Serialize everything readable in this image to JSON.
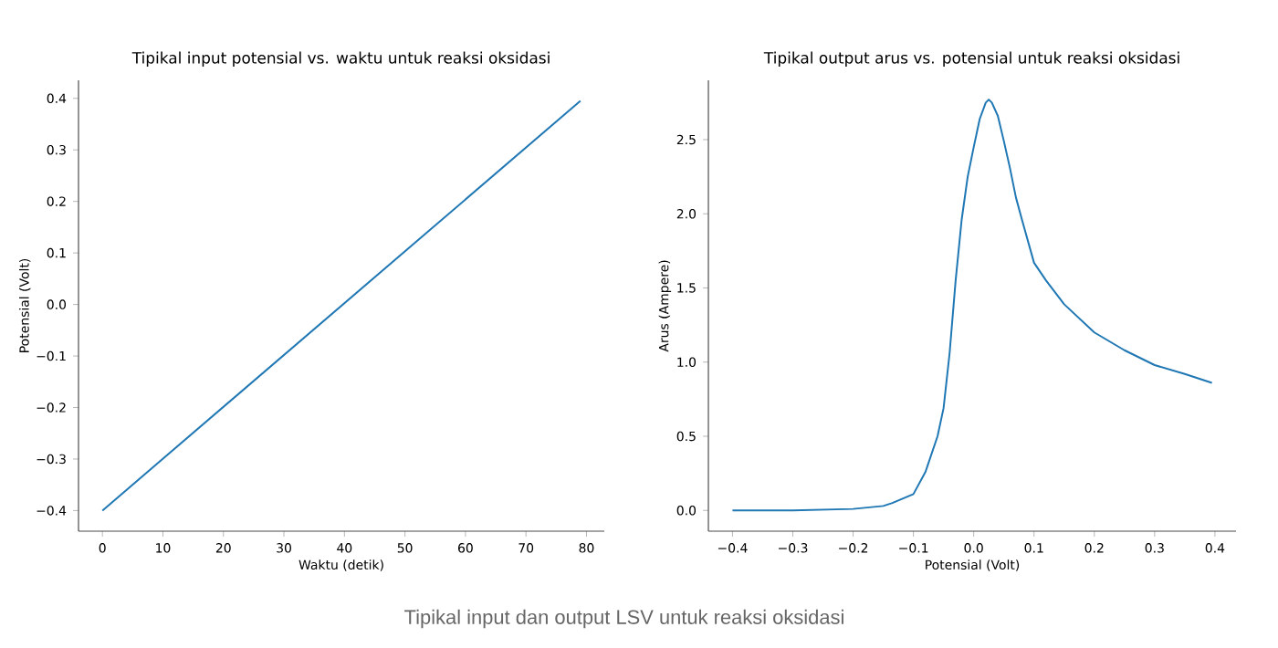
{
  "chart_data": [
    {
      "type": "line",
      "title": "Tipikal input potensial vs. waktu untuk reaksi oksidasi",
      "xlabel": "Waktu (detik)",
      "ylabel": "Potensial (Volt)",
      "x": [
        0,
        79
      ],
      "color": "#1f77b4",
      "values": [
        -0.4,
        0.395
      ],
      "xlim": [
        -3.95,
        82.95
      ],
      "ylim": [
        -0.44,
        0.435
      ],
      "xticks": [
        0,
        10,
        20,
        30,
        40,
        50,
        60,
        70,
        80
      ],
      "yticks": [
        {
          "value": -0.4,
          "label": "−0.4"
        },
        {
          "value": -0.3,
          "label": "−0.3"
        },
        {
          "value": -0.2,
          "label": "−0.2"
        },
        {
          "value": -0.1,
          "label": "−0.1"
        },
        {
          "value": 0,
          "label": "0.0"
        },
        0.1,
        0.2,
        0.3,
        0.4
      ]
    },
    {
      "type": "line",
      "title": "Tipikal output arus vs. potensial untuk reaksi oksidasi",
      "xlabel": "Potensial (Volt)",
      "ylabel": "Arus (Ampere)",
      "x": [
        -0.4,
        -0.3,
        -0.2,
        -0.15,
        -0.135,
        -0.1,
        -0.08,
        -0.06,
        -0.05,
        -0.04,
        -0.03,
        -0.02,
        -0.01,
        0.0,
        0.01,
        0.02,
        0.025,
        0.03,
        0.04,
        0.05,
        0.06,
        0.07,
        0.08,
        0.1,
        0.12,
        0.15,
        0.2,
        0.25,
        0.3,
        0.35,
        0.395
      ],
      "color": "#1f77b4",
      "values": [
        0,
        0,
        0.01,
        0.03,
        0.05,
        0.11,
        0.26,
        0.5,
        0.69,
        1.06,
        1.55,
        1.96,
        2.25,
        2.45,
        2.64,
        2.75,
        2.77,
        2.75,
        2.66,
        2.49,
        2.31,
        2.11,
        1.96,
        1.67,
        1.55,
        1.39,
        1.2,
        1.08,
        0.98,
        0.92,
        0.86
      ],
      "xlim": [
        -0.44,
        0.435
      ],
      "ylim": [
        -0.14,
        2.9
      ],
      "xticks": [
        {
          "value": -0.4,
          "label": "−0.4"
        },
        {
          "value": -0.3,
          "label": "−0.3"
        },
        {
          "value": -0.2,
          "label": "−0.2"
        },
        {
          "value": -0.1,
          "label": "−0.1"
        },
        {
          "value": 0,
          "label": "0.0"
        },
        0.1,
        0.2,
        0.3,
        0.4
      ],
      "yticks": [
        {
          "value": 0,
          "label": "0.0"
        },
        0.5,
        {
          "value": 1,
          "label": "1.0"
        },
        1.5,
        {
          "value": 2,
          "label": "2.0"
        },
        2.5
      ],
      "annotations": [
        "Tipikal input dan output LSV untuk reaksi oksidasi"
      ]
    }
  ]
}
